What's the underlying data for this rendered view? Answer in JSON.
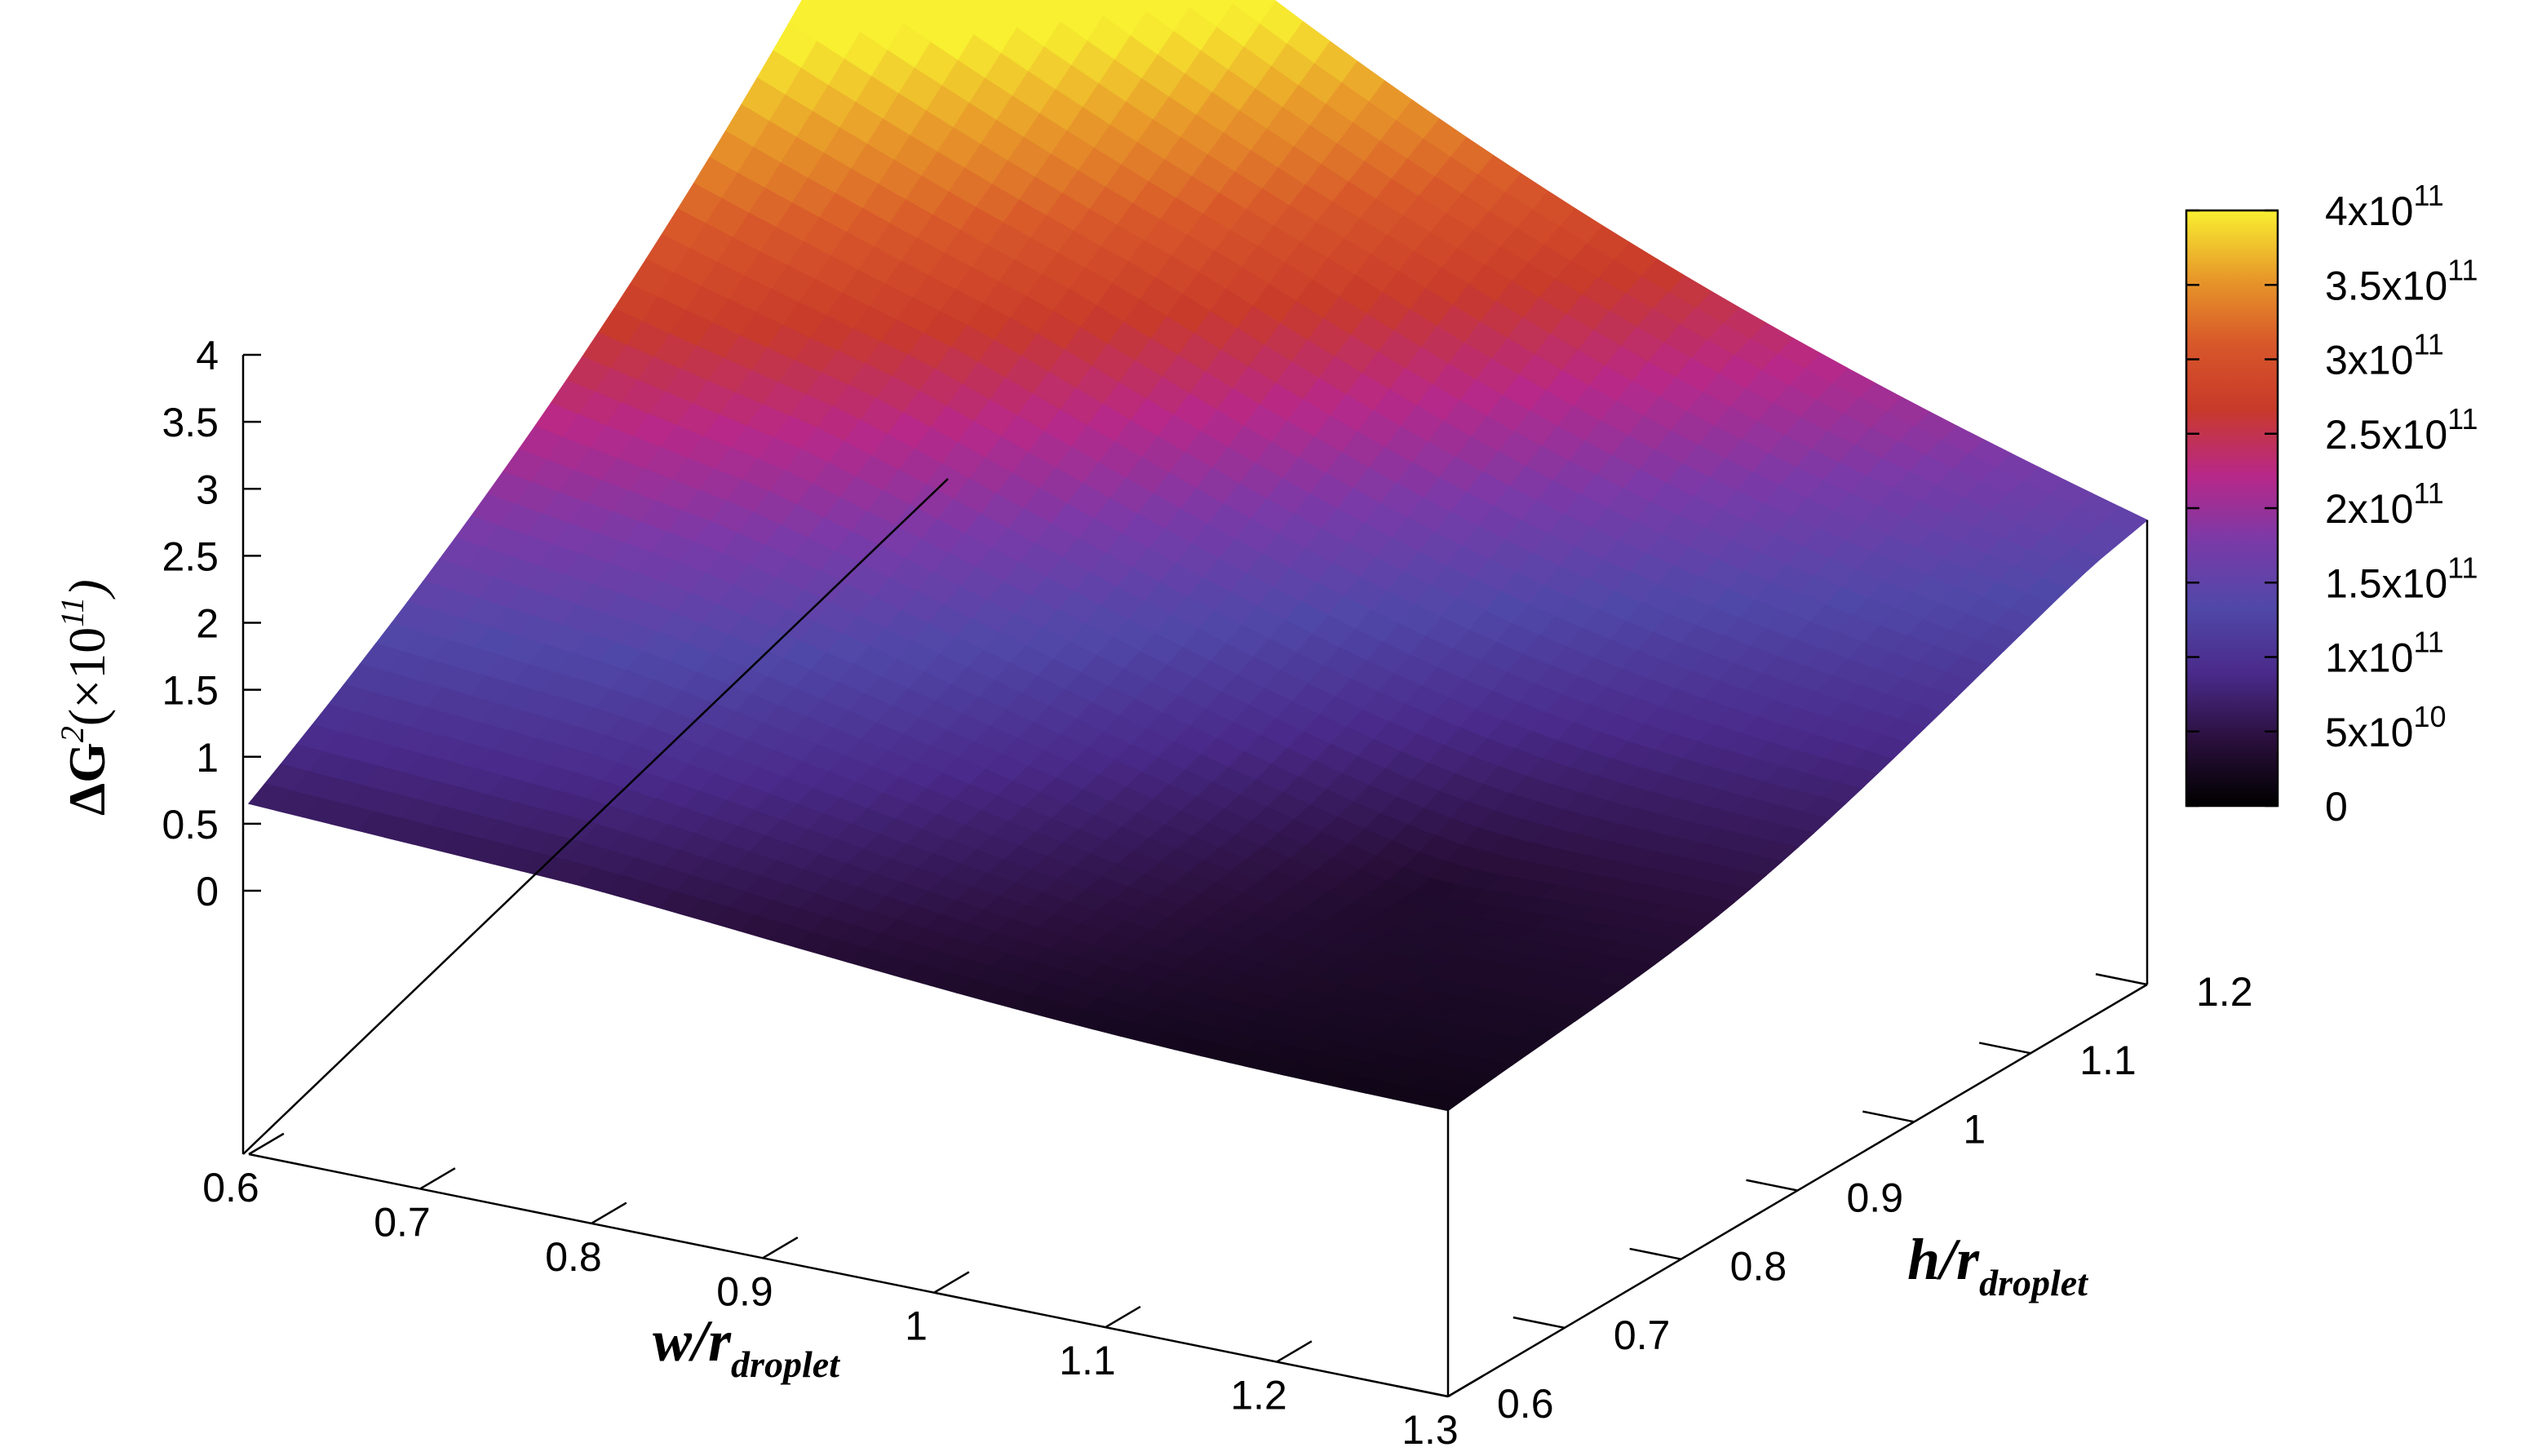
{
  "chart_data": {
    "type": "surface3d",
    "title": "",
    "zlabel": {
      "prefix": "ΔG",
      "superscript": "2",
      "suffix_open": "(×10",
      "suffix_exp": "11",
      "suffix_close": ")"
    },
    "xlabel": {
      "main": "w/r",
      "subscript": "droplet"
    },
    "ylabel": {
      "main": "h/r",
      "subscript": "droplet"
    },
    "x_ticks": [
      "0.6",
      "0.7",
      "0.8",
      "0.9",
      "1",
      "1.1",
      "1.2",
      "1.3"
    ],
    "y_ticks": [
      "0.6",
      "0.7",
      "0.8",
      "0.9",
      "1",
      "1.1",
      "1.2"
    ],
    "z_ticks": [
      "0",
      "0.5",
      "1",
      "1.5",
      "2",
      "2.5",
      "3",
      "3.5",
      "4"
    ],
    "xlim": [
      0.6,
      1.3
    ],
    "ylim": [
      0.6,
      1.2
    ],
    "zlim": [
      0,
      4
    ],
    "colorbar": {
      "range": [
        0,
        400000000000.0
      ],
      "ticks": [
        {
          "base": "0",
          "exp": ""
        },
        {
          "base": "5x10",
          "exp": "10"
        },
        {
          "base": "1x10",
          "exp": "11"
        },
        {
          "base": "1.5x10",
          "exp": "11"
        },
        {
          "base": "2x10",
          "exp": "11"
        },
        {
          "base": "2.5x10",
          "exp": "11"
        },
        {
          "base": "3x10",
          "exp": "11"
        },
        {
          "base": "3.5x10",
          "exp": "11"
        },
        {
          "base": "4x10",
          "exp": "11"
        }
      ],
      "palette": [
        "#000000",
        "#2a0f3c",
        "#4a2a8a",
        "#5048a8",
        "#7a3aa8",
        "#b82888",
        "#c83a2a",
        "#d8582a",
        "#e89a2a",
        "#f8f030"
      ]
    },
    "surface_corners": {
      "w_0.6_h_0.6": 0.65,
      "w_1.3_h_0.6": 0.25,
      "w_1.3_h_1.2": 1.5,
      "w_0.6_h_1.2": 4.0,
      "minimum": 0.01
    },
    "grid": false,
    "legend": "colorbar-right"
  }
}
